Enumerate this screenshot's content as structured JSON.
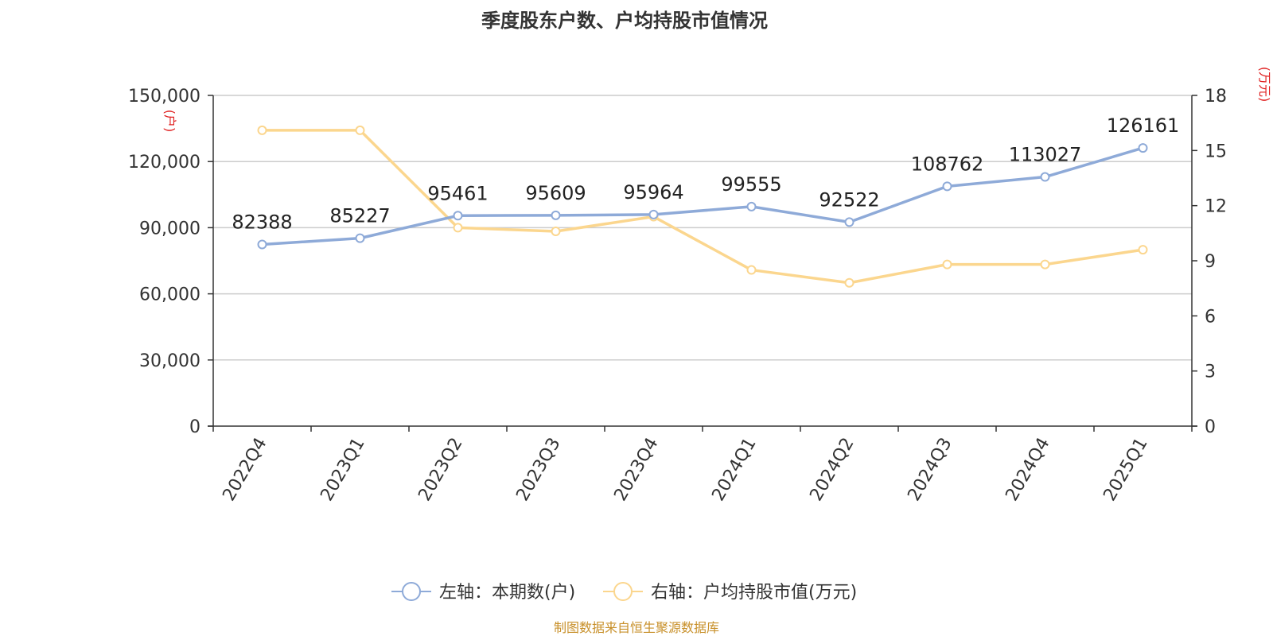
{
  "chart_data": {
    "type": "line",
    "title": "季度股东户数、户均持股市值情况",
    "categories": [
      "2022Q4",
      "2023Q1",
      "2023Q2",
      "2023Q3",
      "2023Q4",
      "2024Q1",
      "2024Q2",
      "2024Q3",
      "2024Q4",
      "2025Q1"
    ],
    "left_axis": {
      "unit_label": "(户)",
      "ylim": [
        0,
        150000
      ],
      "ticks": [
        0,
        30000,
        60000,
        90000,
        120000,
        150000
      ],
      "tick_labels": [
        "0",
        "30,000",
        "60,000",
        "90,000",
        "120,000",
        "150,000"
      ]
    },
    "right_axis": {
      "unit_label": "(万元)",
      "ylim": [
        0,
        18
      ],
      "ticks": [
        0,
        3,
        6,
        9,
        12,
        15,
        18
      ],
      "tick_labels": [
        "0",
        "3",
        "6",
        "9",
        "12",
        "15",
        "18"
      ]
    },
    "series": [
      {
        "name": "左轴：本期数(户)",
        "axis": "left",
        "color": "#8eaad8",
        "values": [
          82388,
          85227,
          95461,
          95609,
          95964,
          99555,
          92522,
          108762,
          113027,
          126161
        ],
        "data_labels": [
          "82388",
          "85227",
          "95461",
          "95609",
          "95964",
          "99555",
          "92522",
          "108762",
          "113027",
          "126161"
        ]
      },
      {
        "name": "右轴：户均持股市值(万元)",
        "axis": "right",
        "color": "#fbd68e",
        "values": [
          16.1,
          16.1,
          10.8,
          10.6,
          11.4,
          8.5,
          7.8,
          8.8,
          8.8,
          9.6
        ]
      }
    ],
    "grid": true,
    "legend_position": "bottom-center",
    "source": "制图数据来自恒生聚源数据库",
    "source_color": "#c8902a",
    "unit_label_color": "#e02020"
  }
}
